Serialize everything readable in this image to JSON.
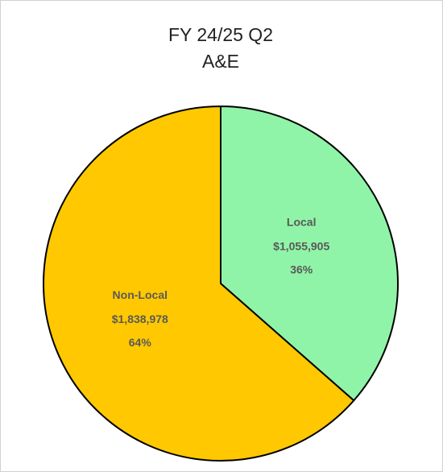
{
  "chart_data": {
    "type": "pie",
    "title": "FY 24/25 Q2",
    "subtitle": "A&E",
    "categories": [
      "Local",
      "Non-Local"
    ],
    "values": [
      1055905,
      1838978
    ],
    "value_labels": [
      "$1,055,905",
      "$1,838,978"
    ],
    "percentages": [
      36,
      64
    ],
    "percentage_labels": [
      "36%",
      "64%"
    ],
    "colors": [
      "#90f4a8",
      "#ffc800"
    ]
  }
}
